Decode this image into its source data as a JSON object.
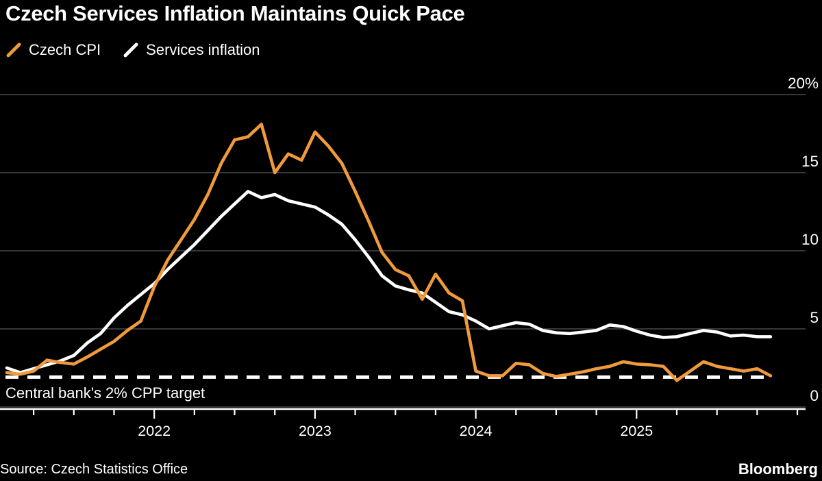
{
  "title": "Czech Services Inflation Maintains Quick Pace",
  "legend": [
    {
      "label": "Czech CPI",
      "color": "#F09A3C"
    },
    {
      "label": "Services inflation",
      "color": "#FFFFFF"
    }
  ],
  "source": "Source: Czech Statistics Office",
  "brand": "Bloomberg",
  "colors": {
    "background": "#000000",
    "grid": "#4a4a4a",
    "axis": "#FFFFFF",
    "cpi_line": "#F09A3C",
    "services_line": "#FFFFFF",
    "text": "#FFFFFF"
  },
  "chart_data": {
    "type": "line",
    "title": "Czech Services Inflation Maintains Quick Pace",
    "x_start_month": "2021-02",
    "x_end_month": "2025-11",
    "x_year_labels": [
      "2022",
      "2023",
      "2024",
      "2025"
    ],
    "y_ticks": [
      0,
      5,
      10,
      15,
      20
    ],
    "y_top_tick_label": "20%",
    "y_unit": "%",
    "ylim": [
      0,
      20
    ],
    "grid": "horizontal",
    "legend_position": "top-left",
    "target_line": {
      "value": 2,
      "label": "Central bank's 2% CPP target",
      "style": "dashed",
      "color": "#FFFFFF"
    },
    "series": [
      {
        "name": "Czech CPI",
        "color": "#F09A3C",
        "values": [
          2.2,
          2.1,
          2.3,
          3.0,
          2.85,
          2.75,
          3.2,
          3.7,
          4.2,
          4.9,
          5.5,
          7.7,
          9.4,
          10.7,
          12.0,
          13.6,
          15.6,
          17.1,
          17.3,
          18.1,
          15.0,
          16.2,
          15.8,
          17.6,
          16.7,
          15.6,
          13.8,
          11.9,
          9.9,
          8.8,
          8.4,
          6.9,
          8.5,
          7.3,
          6.8,
          2.3,
          2.0,
          2.0,
          2.8,
          2.7,
          2.15,
          1.95,
          2.1,
          2.25,
          2.45,
          2.6,
          2.9,
          2.75,
          2.7,
          2.6,
          1.7,
          2.3,
          2.9,
          2.6,
          2.45,
          2.3,
          2.45,
          2.0
        ]
      },
      {
        "name": "Services inflation",
        "color": "#FFFFFF",
        "values": [
          2.5,
          2.2,
          2.45,
          2.7,
          2.95,
          3.3,
          4.1,
          4.7,
          5.7,
          6.5,
          7.2,
          7.9,
          8.8,
          9.6,
          10.4,
          11.3,
          12.2,
          13.0,
          13.8,
          13.4,
          13.6,
          13.2,
          13.0,
          12.8,
          12.3,
          11.7,
          10.7,
          9.6,
          8.4,
          7.75,
          7.5,
          7.3,
          6.7,
          6.1,
          5.9,
          5.5,
          5.0,
          5.2,
          5.4,
          5.3,
          4.9,
          4.75,
          4.7,
          4.8,
          4.9,
          5.25,
          5.15,
          4.85,
          4.6,
          4.45,
          4.5,
          4.7,
          4.9,
          4.8,
          4.55,
          4.6,
          4.5,
          4.5
        ]
      }
    ]
  }
}
